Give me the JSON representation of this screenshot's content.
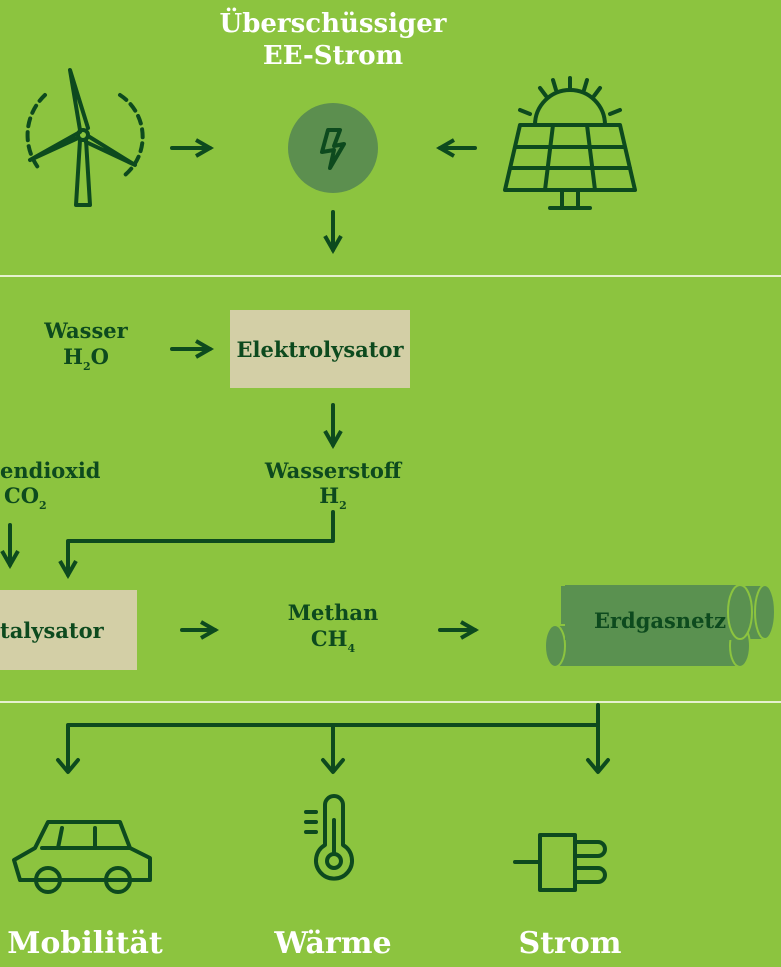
{
  "header": {
    "title_lines": [
      "Überschüssiger",
      "EE-Strom"
    ]
  },
  "nodes": [
    {
      "name": "Wasser",
      "formula": [
        "H",
        "2",
        "O"
      ]
    },
    {
      "label": "Elektrolysator"
    },
    {
      "name": "Wasserstoff",
      "formula": [
        "H",
        "2"
      ]
    },
    {
      "name": "endioxid",
      "formula": [
        "CO",
        "2"
      ]
    },
    {
      "label": "talysator"
    },
    {
      "name": "Methan",
      "formula": [
        "CH",
        "4"
      ]
    },
    {
      "label": "Erdgasnetz"
    }
  ],
  "uses": [
    "Mobilität",
    "Wärme",
    "Strom"
  ]
}
